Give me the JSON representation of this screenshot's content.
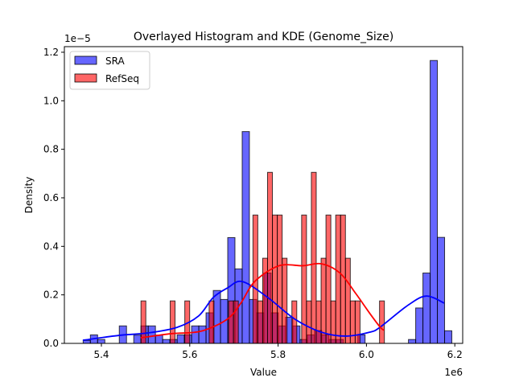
{
  "chart_data": {
    "type": "histogram+kde",
    "title": "Overlayed Histogram and KDE (Genome_Size)",
    "xlabel": "Value",
    "ylabel": "Density",
    "x_offset_label": "1e6",
    "y_offset_label": "1e−5",
    "xlim": [
      5.32,
      6.22
    ],
    "ylim": [
      0,
      1.23
    ],
    "x_ticks": [
      5.4,
      5.6,
      5.8,
      6.0,
      6.2
    ],
    "x_tick_labels": [
      "5.4",
      "5.6",
      "5.8",
      "6.0",
      "6.2"
    ],
    "y_ticks": [
      0,
      0.2,
      0.4,
      0.6,
      0.8,
      1.0,
      1.2
    ],
    "y_tick_labels": [
      "0.0",
      "0.2",
      "0.4",
      "0.6",
      "0.8",
      "1.0",
      "1.2"
    ],
    "grid": false,
    "legend_position": "top-left",
    "series": [
      {
        "name": "SRA",
        "color": "#0000ff",
        "bin_start": 5.3587,
        "bin_width": 0.016364,
        "densities": [
          0.012,
          0.035,
          0.016,
          0,
          0,
          0.072,
          0,
          0.034,
          0.072,
          0.072,
          0.034,
          0.016,
          0.016,
          0.035,
          0.035,
          0.072,
          0.072,
          0.126,
          0.218,
          0.181,
          0.436,
          0.307,
          0.873,
          0.181,
          0.126,
          0.29,
          0.126,
          0.072,
          0.108,
          0.072,
          0.016,
          0.035,
          0.053,
          0.035,
          0.016,
          0.016,
          0,
          0,
          0.035,
          0,
          0,
          0,
          0,
          0,
          0,
          0.016,
          0.146,
          0.29,
          1.166,
          0.437,
          0.052
        ],
        "kde": [
          [
            5.358,
            0.013
          ],
          [
            5.44,
            0.033
          ],
          [
            5.505,
            0.043
          ],
          [
            5.571,
            0.066
          ],
          [
            5.62,
            0.113
          ],
          [
            5.653,
            0.189
          ],
          [
            5.685,
            0.228
          ],
          [
            5.719,
            0.255
          ],
          [
            5.776,
            0.19
          ],
          [
            5.838,
            0.1
          ],
          [
            5.898,
            0.046
          ],
          [
            5.953,
            0.03
          ],
          [
            6.007,
            0.046
          ],
          [
            6.031,
            0.067
          ],
          [
            6.093,
            0.156
          ],
          [
            6.135,
            0.195
          ],
          [
            6.176,
            0.166
          ]
        ]
      },
      {
        "name": "RefSeq",
        "color": "#ff0000",
        "bin_start": 5.4896,
        "bin_width": 0.01102,
        "densities": [
          0.175,
          0,
          0,
          0,
          0,
          0,
          0.175,
          0,
          0,
          0.175,
          0,
          0,
          0,
          0,
          0.175,
          0,
          0,
          0,
          0.175,
          0.175,
          0,
          0,
          0,
          0.529,
          0.175,
          0.351,
          0.705,
          0.529,
          0.529,
          0.351,
          0,
          0.175,
          0,
          0.529,
          0.175,
          0.705,
          0.175,
          0.351,
          0.529,
          0.175,
          0.529,
          0.529,
          0.351,
          0.175,
          0.175,
          0,
          0,
          0,
          0,
          0.175
        ],
        "kde": [
          [
            5.489,
            0.023
          ],
          [
            5.558,
            0.04
          ],
          [
            5.625,
            0.05
          ],
          [
            5.685,
            0.1
          ],
          [
            5.716,
            0.167
          ],
          [
            5.747,
            0.255
          ],
          [
            5.802,
            0.32
          ],
          [
            5.856,
            0.32
          ],
          [
            5.898,
            0.328
          ],
          [
            5.94,
            0.29
          ],
          [
            5.976,
            0.205
          ],
          [
            6.007,
            0.125
          ],
          [
            6.031,
            0.067
          ],
          [
            6.04,
            0.054
          ]
        ]
      }
    ]
  }
}
